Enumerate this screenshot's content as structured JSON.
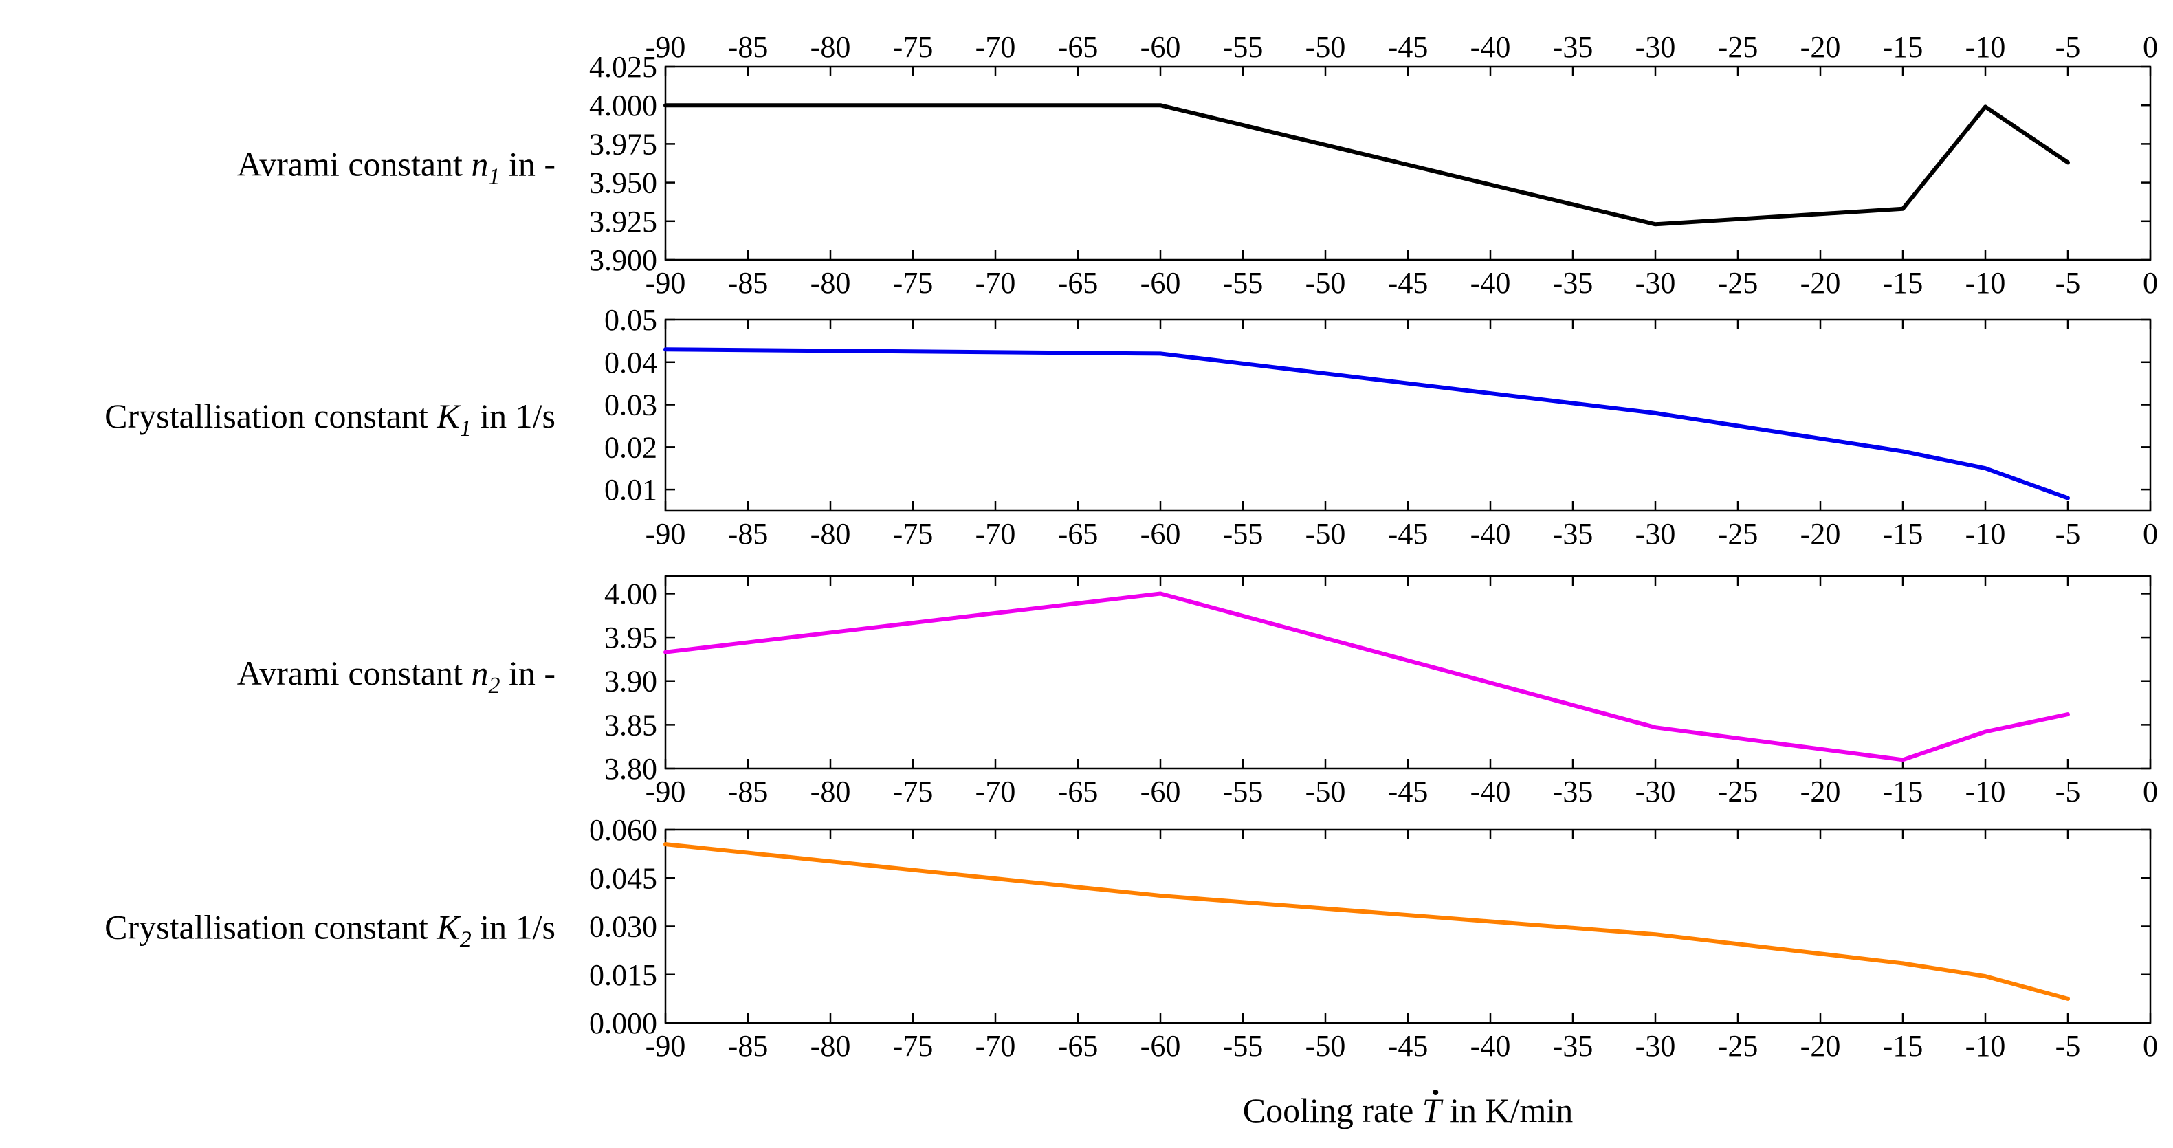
{
  "chart_data": [
    {
      "type": "line",
      "x": [
        -90,
        -60,
        -30,
        -15,
        -10,
        -5
      ],
      "values": [
        4.0,
        4.0,
        3.923,
        3.933,
        3.999,
        3.963
      ],
      "color": "#000000",
      "ylabel": {
        "pre": "Avrami constant ",
        "var": "n",
        "sub": "1",
        "post": " in -"
      },
      "xlim": [
        -90,
        0
      ],
      "ylim": [
        3.9,
        4.025
      ],
      "yticks": [
        "3.900",
        "3.925",
        "3.950",
        "3.975",
        "4.000",
        "4.025"
      ],
      "top_axis": true
    },
    {
      "type": "line",
      "x": [
        -90,
        -60,
        -30,
        -15,
        -10,
        -5
      ],
      "values": [
        0.043,
        0.042,
        0.028,
        0.019,
        0.015,
        0.008
      ],
      "color": "#0000ee",
      "ylabel": {
        "pre": "Crystallisation constant ",
        "var": "K",
        "sub": "1",
        "post": " in 1/s"
      },
      "xlim": [
        -90,
        0
      ],
      "ylim": [
        0.005,
        0.05
      ],
      "yticks": [
        "0.01",
        "0.02",
        "0.03",
        "0.04",
        "0.05"
      ]
    },
    {
      "type": "line",
      "x": [
        -90,
        -60,
        -30,
        -15,
        -10,
        -5
      ],
      "values": [
        3.933,
        4.0,
        3.847,
        3.81,
        3.842,
        3.862
      ],
      "color": "#ee00ee",
      "ylabel": {
        "pre": "Avrami constant ",
        "var": "n",
        "sub": "2",
        "post": " in -"
      },
      "xlim": [
        -90,
        0
      ],
      "ylim": [
        3.8,
        4.02
      ],
      "yticks": [
        "3.80",
        "3.85",
        "3.90",
        "3.95",
        "4.00"
      ]
    },
    {
      "type": "line",
      "x": [
        -90,
        -60,
        -30,
        -15,
        -10,
        -5
      ],
      "values": [
        0.0555,
        0.0395,
        0.0275,
        0.0185,
        0.0145,
        0.0075
      ],
      "color": "#ff8000",
      "ylabel": {
        "pre": "Crystallisation constant ",
        "var": "K",
        "sub": "2",
        "post": " in 1/s"
      },
      "xlim": [
        -90,
        0
      ],
      "ylim": [
        0.0,
        0.06
      ],
      "yticks": [
        "0.000",
        "0.015",
        "0.030",
        "0.045",
        "0.060"
      ]
    }
  ],
  "xticks": [
    "-90",
    "-85",
    "-80",
    "-75",
    "-70",
    "-65",
    "-60",
    "-55",
    "-50",
    "-45",
    "-40",
    "-35",
    "-30",
    "-25",
    "-20",
    "-15",
    "-10",
    "-5",
    "0"
  ],
  "xlabel": {
    "pre": "Cooling rate ",
    "var": "T",
    "post": " in K/min"
  }
}
